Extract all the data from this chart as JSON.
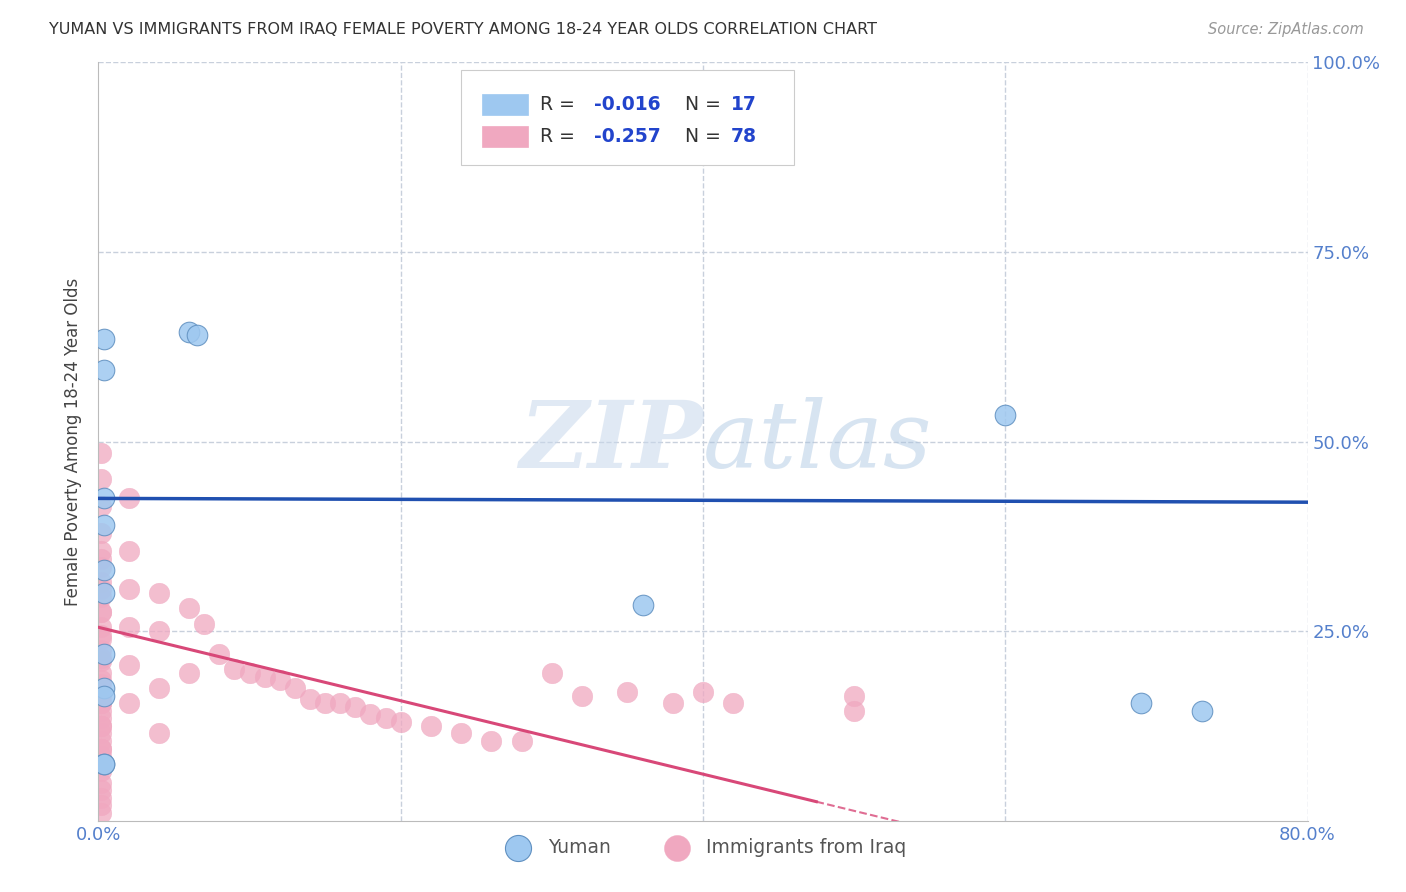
{
  "title": "YUMAN VS IMMIGRANTS FROM IRAQ FEMALE POVERTY AMONG 18-24 YEAR OLDS CORRELATION CHART",
  "source": "Source: ZipAtlas.com",
  "ylabel": "Female Poverty Among 18-24 Year Olds",
  "xlim": [
    0,
    0.8
  ],
  "ylim": [
    0,
    1.0
  ],
  "grid_color": "#c8d0dc",
  "background_color": "#ffffff",
  "blue_color": "#9ec8f0",
  "pink_color": "#f0a8c0",
  "blue_line_color": "#2050b0",
  "pink_line_color": "#d84878",
  "watermark_color": "#dce8f4",
  "blue_r": -0.016,
  "blue_n": 17,
  "pink_r": -0.257,
  "pink_n": 78,
  "blue_line_y0": 0.425,
  "blue_line_y1": 0.42,
  "pink_line_x0": 0.0,
  "pink_line_y0": 0.255,
  "pink_line_x1": 0.475,
  "pink_line_y1": 0.025,
  "blue_points_x": [
    0.004,
    0.004,
    0.06,
    0.065,
    0.004,
    0.004,
    0.004,
    0.36,
    0.004,
    0.004,
    0.6,
    0.004,
    0.004,
    0.69,
    0.73,
    0.004,
    0.004
  ],
  "blue_points_y": [
    0.635,
    0.595,
    0.645,
    0.64,
    0.425,
    0.39,
    0.33,
    0.285,
    0.3,
    0.175,
    0.535,
    0.165,
    0.075,
    0.155,
    0.145,
    0.075,
    0.22
  ],
  "pink_points_x": [
    0.002,
    0.002,
    0.002,
    0.002,
    0.002,
    0.002,
    0.002,
    0.002,
    0.002,
    0.002,
    0.002,
    0.002,
    0.002,
    0.002,
    0.002,
    0.002,
    0.002,
    0.002,
    0.002,
    0.002,
    0.002,
    0.002,
    0.002,
    0.002,
    0.002,
    0.002,
    0.002,
    0.002,
    0.002,
    0.002,
    0.002,
    0.002,
    0.002,
    0.002,
    0.002,
    0.002,
    0.002,
    0.002,
    0.002,
    0.002,
    0.02,
    0.02,
    0.02,
    0.02,
    0.02,
    0.02,
    0.04,
    0.04,
    0.04,
    0.04,
    0.06,
    0.06,
    0.07,
    0.08,
    0.09,
    0.1,
    0.11,
    0.12,
    0.13,
    0.14,
    0.15,
    0.16,
    0.17,
    0.18,
    0.19,
    0.2,
    0.22,
    0.24,
    0.26,
    0.28,
    0.3,
    0.32,
    0.35,
    0.38,
    0.4,
    0.42,
    0.5,
    0.5
  ],
  "pink_points_y": [
    0.485,
    0.45,
    0.415,
    0.38,
    0.355,
    0.335,
    0.315,
    0.295,
    0.275,
    0.255,
    0.24,
    0.225,
    0.21,
    0.195,
    0.18,
    0.165,
    0.155,
    0.145,
    0.135,
    0.125,
    0.115,
    0.105,
    0.095,
    0.085,
    0.075,
    0.065,
    0.05,
    0.04,
    0.03,
    0.02,
    0.01,
    0.345,
    0.305,
    0.275,
    0.245,
    0.215,
    0.185,
    0.155,
    0.125,
    0.095,
    0.425,
    0.355,
    0.305,
    0.255,
    0.205,
    0.155,
    0.3,
    0.25,
    0.175,
    0.115,
    0.28,
    0.195,
    0.26,
    0.22,
    0.2,
    0.195,
    0.19,
    0.185,
    0.175,
    0.16,
    0.155,
    0.155,
    0.15,
    0.14,
    0.135,
    0.13,
    0.125,
    0.115,
    0.105,
    0.105,
    0.195,
    0.165,
    0.17,
    0.155,
    0.17,
    0.155,
    0.165,
    0.145
  ]
}
